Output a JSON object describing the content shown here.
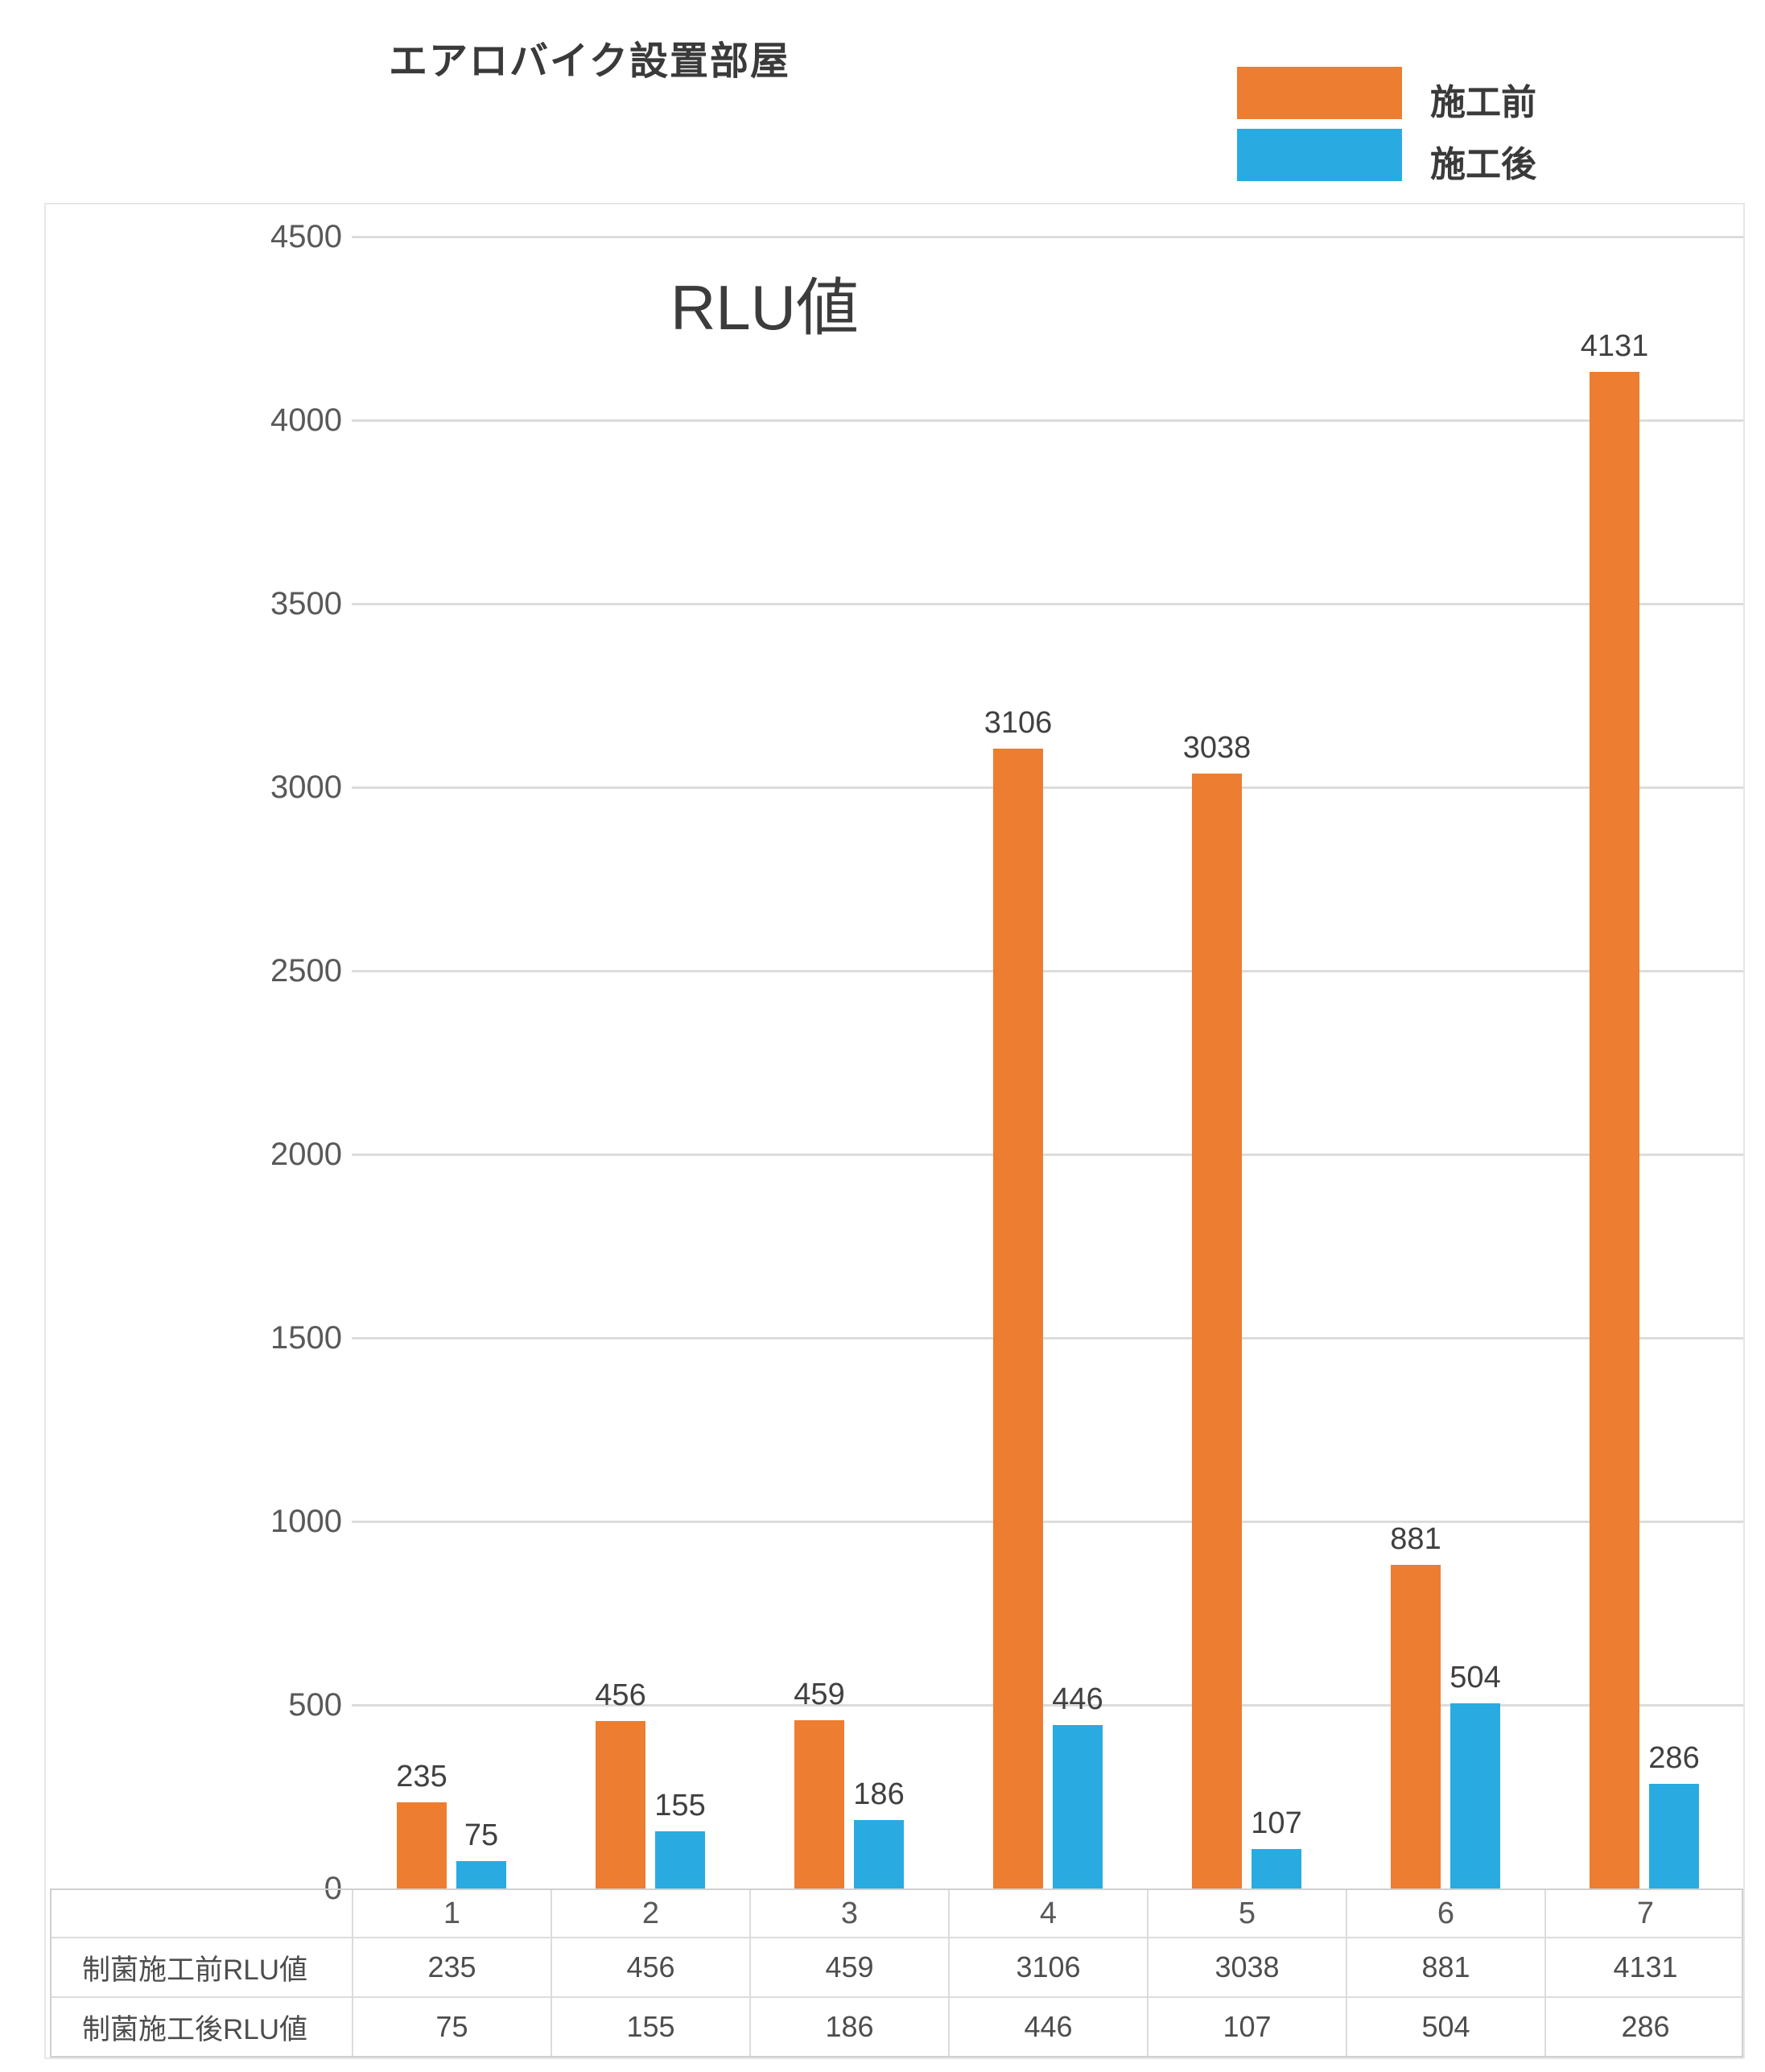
{
  "header": {
    "title": "エアロバイク設置部屋",
    "legend": [
      {
        "label": "施工前",
        "color": "#ED7D31"
      },
      {
        "label": "施工後",
        "color": "#29ABE2"
      }
    ]
  },
  "chart_data": {
    "type": "bar",
    "title": "RLU値",
    "categories": [
      "1",
      "2",
      "3",
      "4",
      "5",
      "6",
      "7"
    ],
    "series": [
      {
        "name": "施工前",
        "color": "#ED7D31",
        "values": [
          235,
          456,
          459,
          3106,
          3038,
          881,
          4131
        ]
      },
      {
        "name": "施工後",
        "color": "#29ABE2",
        "values": [
          75,
          155,
          186,
          446,
          107,
          504,
          286
        ]
      }
    ],
    "xlabel": "",
    "ylabel": "",
    "ylim": [
      0,
      4500
    ],
    "ytick_step": 500,
    "grid": true,
    "legend_position": "top-right",
    "data_labels": true
  },
  "table": {
    "corner_label": "",
    "rows": [
      {
        "label": "制菌施工前RLU値",
        "values": [
          "235",
          "456",
          "459",
          "3106",
          "3038",
          "881",
          "4131"
        ]
      },
      {
        "label": "制菌施工後RLU値",
        "values": [
          "75",
          "155",
          "186",
          "446",
          "107",
          "504",
          "286"
        ]
      }
    ]
  },
  "colors": {
    "before": "#ED7D31",
    "after": "#29ABE2",
    "gridline": "#dcdcdc",
    "table_border": "#d6d6d6",
    "tick_text": "#595959",
    "label_text": "#404040",
    "title_text": "#3a3a3a",
    "chart_border": "#e7e7e7",
    "background": "#ffffff"
  }
}
